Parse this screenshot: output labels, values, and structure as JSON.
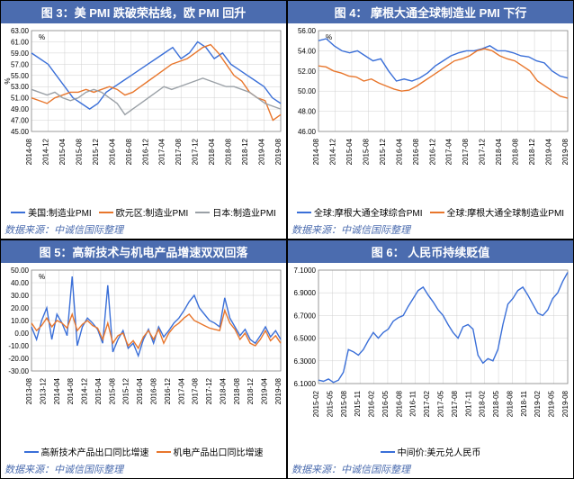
{
  "colors": {
    "title_bg": "#4b6caf",
    "title_fg": "#ffffff",
    "source_fg": "#4b6caf",
    "grid": "#d0d0d0",
    "blue": "#3a6fd8",
    "orange": "#e8762c",
    "gray": "#9aa0a6"
  },
  "source_text": "数据来源：中诚信国际整理",
  "chart3": {
    "title": "图 3：美 PMI 跌破荣枯线，欧 PMI 回升",
    "type": "line",
    "ylim": [
      45,
      63
    ],
    "ystep": 2,
    "ylabel_text": "%",
    "unit_text": "%",
    "x_labels": [
      "2014-08",
      "2014-12",
      "2015-04",
      "2015-08",
      "2015-12",
      "2016-04",
      "2016-08",
      "2016-12",
      "2017-04",
      "2017-08",
      "2017-12",
      "2018-04",
      "2018-08",
      "2018-12",
      "2019-04",
      "2019-08"
    ],
    "series": [
      {
        "name": "美国:制造业PMI",
        "color": "#3a6fd8",
        "y": [
          59,
          58,
          57,
          55,
          53,
          51,
          50,
          49,
          50,
          52,
          53,
          54,
          55,
          56,
          57,
          58,
          59,
          60,
          58,
          59,
          61,
          60,
          58,
          59,
          57,
          56,
          55,
          54,
          53,
          51,
          50
        ]
      },
      {
        "name": "欧元区:制造业PMI",
        "color": "#e8762c",
        "y": [
          51,
          50.5,
          50,
          51,
          51.5,
          52,
          52,
          52.5,
          52,
          52.5,
          53,
          52.5,
          51.5,
          52,
          53,
          54,
          55,
          56,
          57,
          57.5,
          58,
          59,
          60,
          60.5,
          59,
          57,
          55,
          54,
          52,
          51,
          50.5,
          47,
          48
        ]
      },
      {
        "name": "日本:制造业PMI",
        "color": "#9aa0a6",
        "y": [
          52.5,
          52,
          51.5,
          52,
          51,
          50.5,
          51,
          52,
          52.5,
          52,
          51,
          50,
          48,
          49,
          50,
          51,
          52,
          53,
          52.5,
          53,
          53.5,
          54,
          54.5,
          54,
          53.5,
          53,
          53,
          52.5,
          52,
          51,
          50,
          49.5,
          49
        ]
      }
    ]
  },
  "chart4": {
    "title": "图 4：   摩根大通全球制造业 PMI 下行",
    "type": "line",
    "ylim": [
      46,
      56
    ],
    "ystep": 2,
    "unit_text": "%",
    "x_labels": [
      "2014-08",
      "2014-12",
      "2015-04",
      "2015-08",
      "2015-12",
      "2016-04",
      "2016-08",
      "2016-12",
      "2017-04",
      "2017-08",
      "2017-12",
      "2018-04",
      "2018-08",
      "2018-12",
      "2019-04",
      "2019-08"
    ],
    "series": [
      {
        "name": "全球:摩根大通全球综合PMI",
        "color": "#3a6fd8",
        "y": [
          55,
          55.2,
          54.5,
          54,
          53.8,
          54,
          53.5,
          53,
          53.2,
          52,
          51,
          51.2,
          51,
          51.3,
          51.8,
          52.5,
          53,
          53.5,
          53.8,
          54,
          54,
          54.2,
          54.5,
          54,
          54,
          53.8,
          53.5,
          53.4,
          53,
          52.8,
          52,
          51.5,
          51.3
        ]
      },
      {
        "name": "全球:摩根大通全球制造业PMI",
        "color": "#e8762c",
        "y": [
          52.5,
          52.4,
          52,
          51.8,
          51.5,
          51.4,
          51,
          51.2,
          50.8,
          50.5,
          50.2,
          50,
          50.1,
          50.5,
          51,
          51.5,
          52,
          52.5,
          53,
          53.2,
          53.5,
          54,
          54.2,
          54,
          53.5,
          53.2,
          53,
          52.5,
          52,
          51,
          50.5,
          50,
          49.5,
          49.3
        ]
      }
    ]
  },
  "chart5": {
    "title": "图 5：高新技术与机电产品增速双双回落",
    "type": "line",
    "ylim": [
      -30,
      50
    ],
    "ystep": 10,
    "unit_text": "%",
    "x_labels": [
      "2013-08",
      "2013-12",
      "2014-04",
      "2014-08",
      "2014-12",
      "2015-04",
      "2015-08",
      "2015-12",
      "2016-04",
      "2016-08",
      "2016-12",
      "2017-04",
      "2017-08",
      "2017-12",
      "2018-04",
      "2018-08",
      "2018-12",
      "2019-04",
      "2019-08"
    ],
    "series": [
      {
        "name": "高新技术产品出口同比增速",
        "color": "#3a6fd8",
        "y": [
          5,
          -5,
          10,
          20,
          -5,
          15,
          8,
          -2,
          45,
          -10,
          5,
          12,
          8,
          3,
          -8,
          38,
          -15,
          -5,
          2,
          -12,
          -8,
          -18,
          -5,
          3,
          -8,
          5,
          -3,
          2,
          8,
          12,
          18,
          25,
          30,
          20,
          15,
          10,
          8,
          5,
          28,
          12,
          5,
          -2,
          3,
          -5,
          -8,
          -2,
          5,
          -3,
          2,
          -5
        ]
      },
      {
        "name": "机电产品出口同比增速",
        "color": "#e8762c",
        "y": [
          8,
          2,
          6,
          12,
          5,
          10,
          8,
          4,
          15,
          2,
          7,
          10,
          6,
          4,
          -5,
          8,
          -8,
          -2,
          0,
          -10,
          -6,
          -12,
          -3,
          2,
          -5,
          3,
          -8,
          0,
          5,
          8,
          12,
          15,
          10,
          8,
          6,
          4,
          3,
          2,
          18,
          8,
          3,
          -5,
          0,
          -8,
          -10,
          -5,
          2,
          -6,
          -2,
          -8
        ]
      }
    ]
  },
  "chart6": {
    "title": "图 6：   人民币持续贬值",
    "type": "line",
    "ylim": [
      6.1,
      7.1
    ],
    "ystep": 0.2,
    "x_labels": [
      "2015-02",
      "2015-05",
      "2015-08",
      "2015-11",
      "2016-02",
      "2016-05",
      "2016-08",
      "2016-11",
      "2017-02",
      "2017-05",
      "2017-08",
      "2017-11",
      "2018-02",
      "2018-05",
      "2018-08",
      "2018-11",
      "2019-02",
      "2019-05",
      "2019-08"
    ],
    "series": [
      {
        "name": "中间价:美元兑人民币",
        "color": "#3a6fd8",
        "y": [
          6.13,
          6.12,
          6.14,
          6.11,
          6.13,
          6.2,
          6.4,
          6.38,
          6.35,
          6.4,
          6.48,
          6.55,
          6.5,
          6.55,
          6.58,
          6.65,
          6.68,
          6.7,
          6.78,
          6.85,
          6.92,
          6.95,
          6.88,
          6.82,
          6.75,
          6.7,
          6.62,
          6.55,
          6.5,
          6.6,
          6.62,
          6.58,
          6.35,
          6.28,
          6.32,
          6.3,
          6.4,
          6.62,
          6.8,
          6.85,
          6.92,
          6.95,
          6.88,
          6.8,
          6.72,
          6.7,
          6.75,
          6.85,
          6.9,
          7.0,
          7.08
        ]
      }
    ]
  }
}
